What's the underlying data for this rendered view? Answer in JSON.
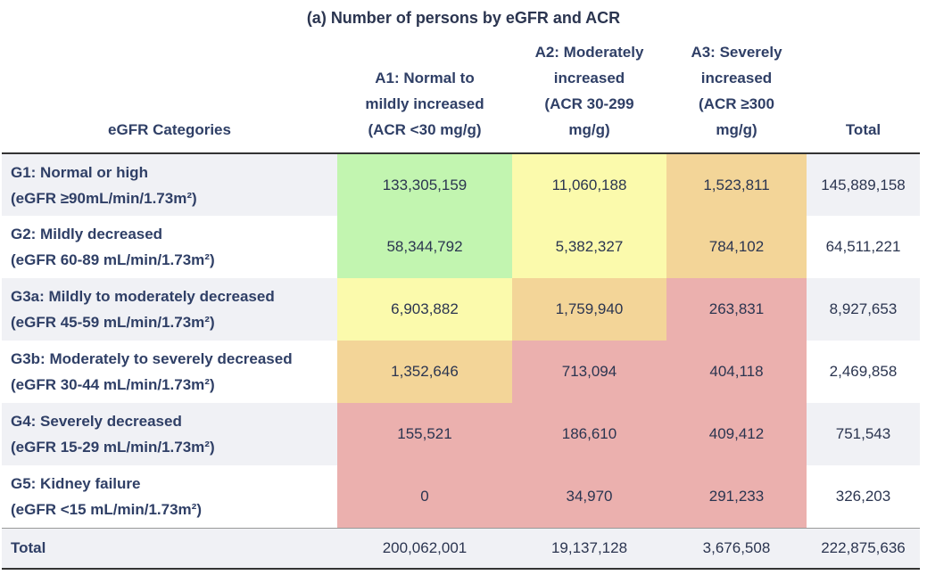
{
  "title": "(a) Number of persons by eGFR and ACR",
  "colors": {
    "green": "#c2f5b0",
    "yellow": "#fbfaac",
    "orange": "#f3d598",
    "red": "#ebb0ae",
    "shade": "#f0f1f5"
  },
  "headers": {
    "category": "eGFR Categories",
    "a1": [
      "A1: Normal to",
      "mildly increased",
      "(ACR <30 mg/g)"
    ],
    "a2": [
      "A2: Moderately",
      "increased",
      "(ACR 30-299",
      "mg/g)"
    ],
    "a3": [
      "A3: Severely",
      "increased",
      "(ACR ≥300",
      "mg/g)"
    ],
    "total": "Total"
  },
  "rows": [
    {
      "label": "G1: Normal or high",
      "sub": "(eGFR ≥90mL/min/1.73m²)",
      "a1": "133,305,159",
      "a2": "11,060,188",
      "a3": "1,523,811",
      "total": "145,889,158"
    },
    {
      "label": "G2: Mildly decreased",
      "sub": "(eGFR 60-89 mL/min/1.73m²)",
      "a1": "58,344,792",
      "a2": "5,382,327",
      "a3": "784,102",
      "total": "64,511,221"
    },
    {
      "label": "G3a: Mildly to moderately decreased",
      "sub": "(eGFR 45-59 mL/min/1.73m²)",
      "a1": "6,903,882",
      "a2": "1,759,940",
      "a3": "263,831",
      "total": "8,927,653"
    },
    {
      "label": "G3b: Moderately to severely decreased",
      "sub": "(eGFR 30-44 mL/min/1.73m²)",
      "a1": "1,352,646",
      "a2": "713,094",
      "a3": "404,118",
      "total": "2,469,858"
    },
    {
      "label": "G4: Severely decreased",
      "sub": "(eGFR 15-29 mL/min/1.73m²)",
      "a1": "155,521",
      "a2": "186,610",
      "a3": "409,412",
      "total": "751,543"
    },
    {
      "label": "G5: Kidney failure",
      "sub": "(eGFR <15 mL/min/1.73m²)",
      "a1": "0",
      "a2": "34,970",
      "a3": "291,233",
      "total": "326,203"
    }
  ],
  "totals": {
    "label": "Total",
    "a1": "200,062,001",
    "a2": "19,137,128",
    "a3": "3,676,508",
    "total": "222,875,636"
  }
}
